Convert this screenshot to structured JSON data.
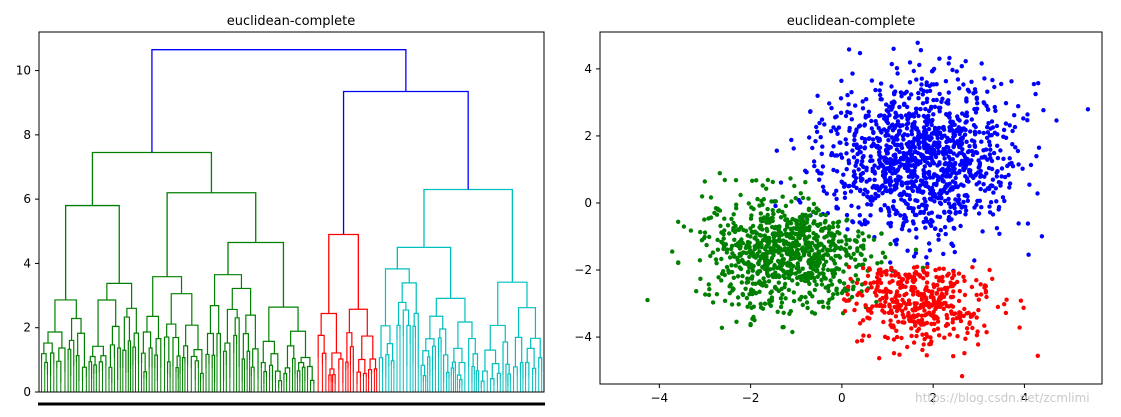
{
  "chart_data": [
    {
      "type": "dendrogram",
      "title": "euclidean-complete",
      "ylim": [
        0,
        11.2
      ],
      "yticks": [
        0,
        2,
        4,
        6,
        8,
        10
      ],
      "colors": {
        "left_group": "#008000",
        "middle_group": "#ff0000",
        "right_group": "#00bfbf",
        "above_threshold": "#0000ff"
      },
      "merges": [
        {
          "height": 10.65,
          "color": "#0000ff",
          "note": "root: left group + right group"
        },
        {
          "height": 9.35,
          "color": "#0000ff",
          "note": "middle group + right group"
        },
        {
          "height": 7.45,
          "color": "#008000"
        },
        {
          "height": 6.2,
          "color": "#008000"
        },
        {
          "height": 5.8,
          "color": "#008000"
        },
        {
          "height": 4.9,
          "color": "#ff0000"
        },
        {
          "height": 6.3,
          "color": "#00bfbf"
        },
        {
          "height": 4.65,
          "color": "#008000"
        },
        {
          "height": 4.7,
          "color": "#00bfbf"
        },
        {
          "height": 4.5,
          "color": "#00bfbf"
        },
        {
          "height": 3.4,
          "color": "#008000"
        }
      ]
    },
    {
      "type": "scatter",
      "title": "euclidean-complete",
      "xlim": [
        -5.3,
        5.7
      ],
      "ylim": [
        -5.4,
        5.1
      ],
      "xticks": [
        -4,
        -2,
        0,
        2,
        4
      ],
      "yticks": [
        -4,
        -2,
        0,
        2,
        4
      ],
      "series": [
        {
          "color": "#0000ff",
          "center": [
            1.7,
            1.3
          ],
          "spread": [
            1.05,
            1.2
          ],
          "count": 1250
        },
        {
          "color": "#008000",
          "center": [
            -1.2,
            -1.45
          ],
          "spread": [
            0.9,
            0.85
          ],
          "count": 900
        },
        {
          "color": "#ff0000",
          "center": [
            1.75,
            -2.85
          ],
          "spread": [
            0.8,
            0.75
          ],
          "count": 480
        }
      ]
    }
  ],
  "watermark": "https://blog.csdn.net/zcmlimi"
}
